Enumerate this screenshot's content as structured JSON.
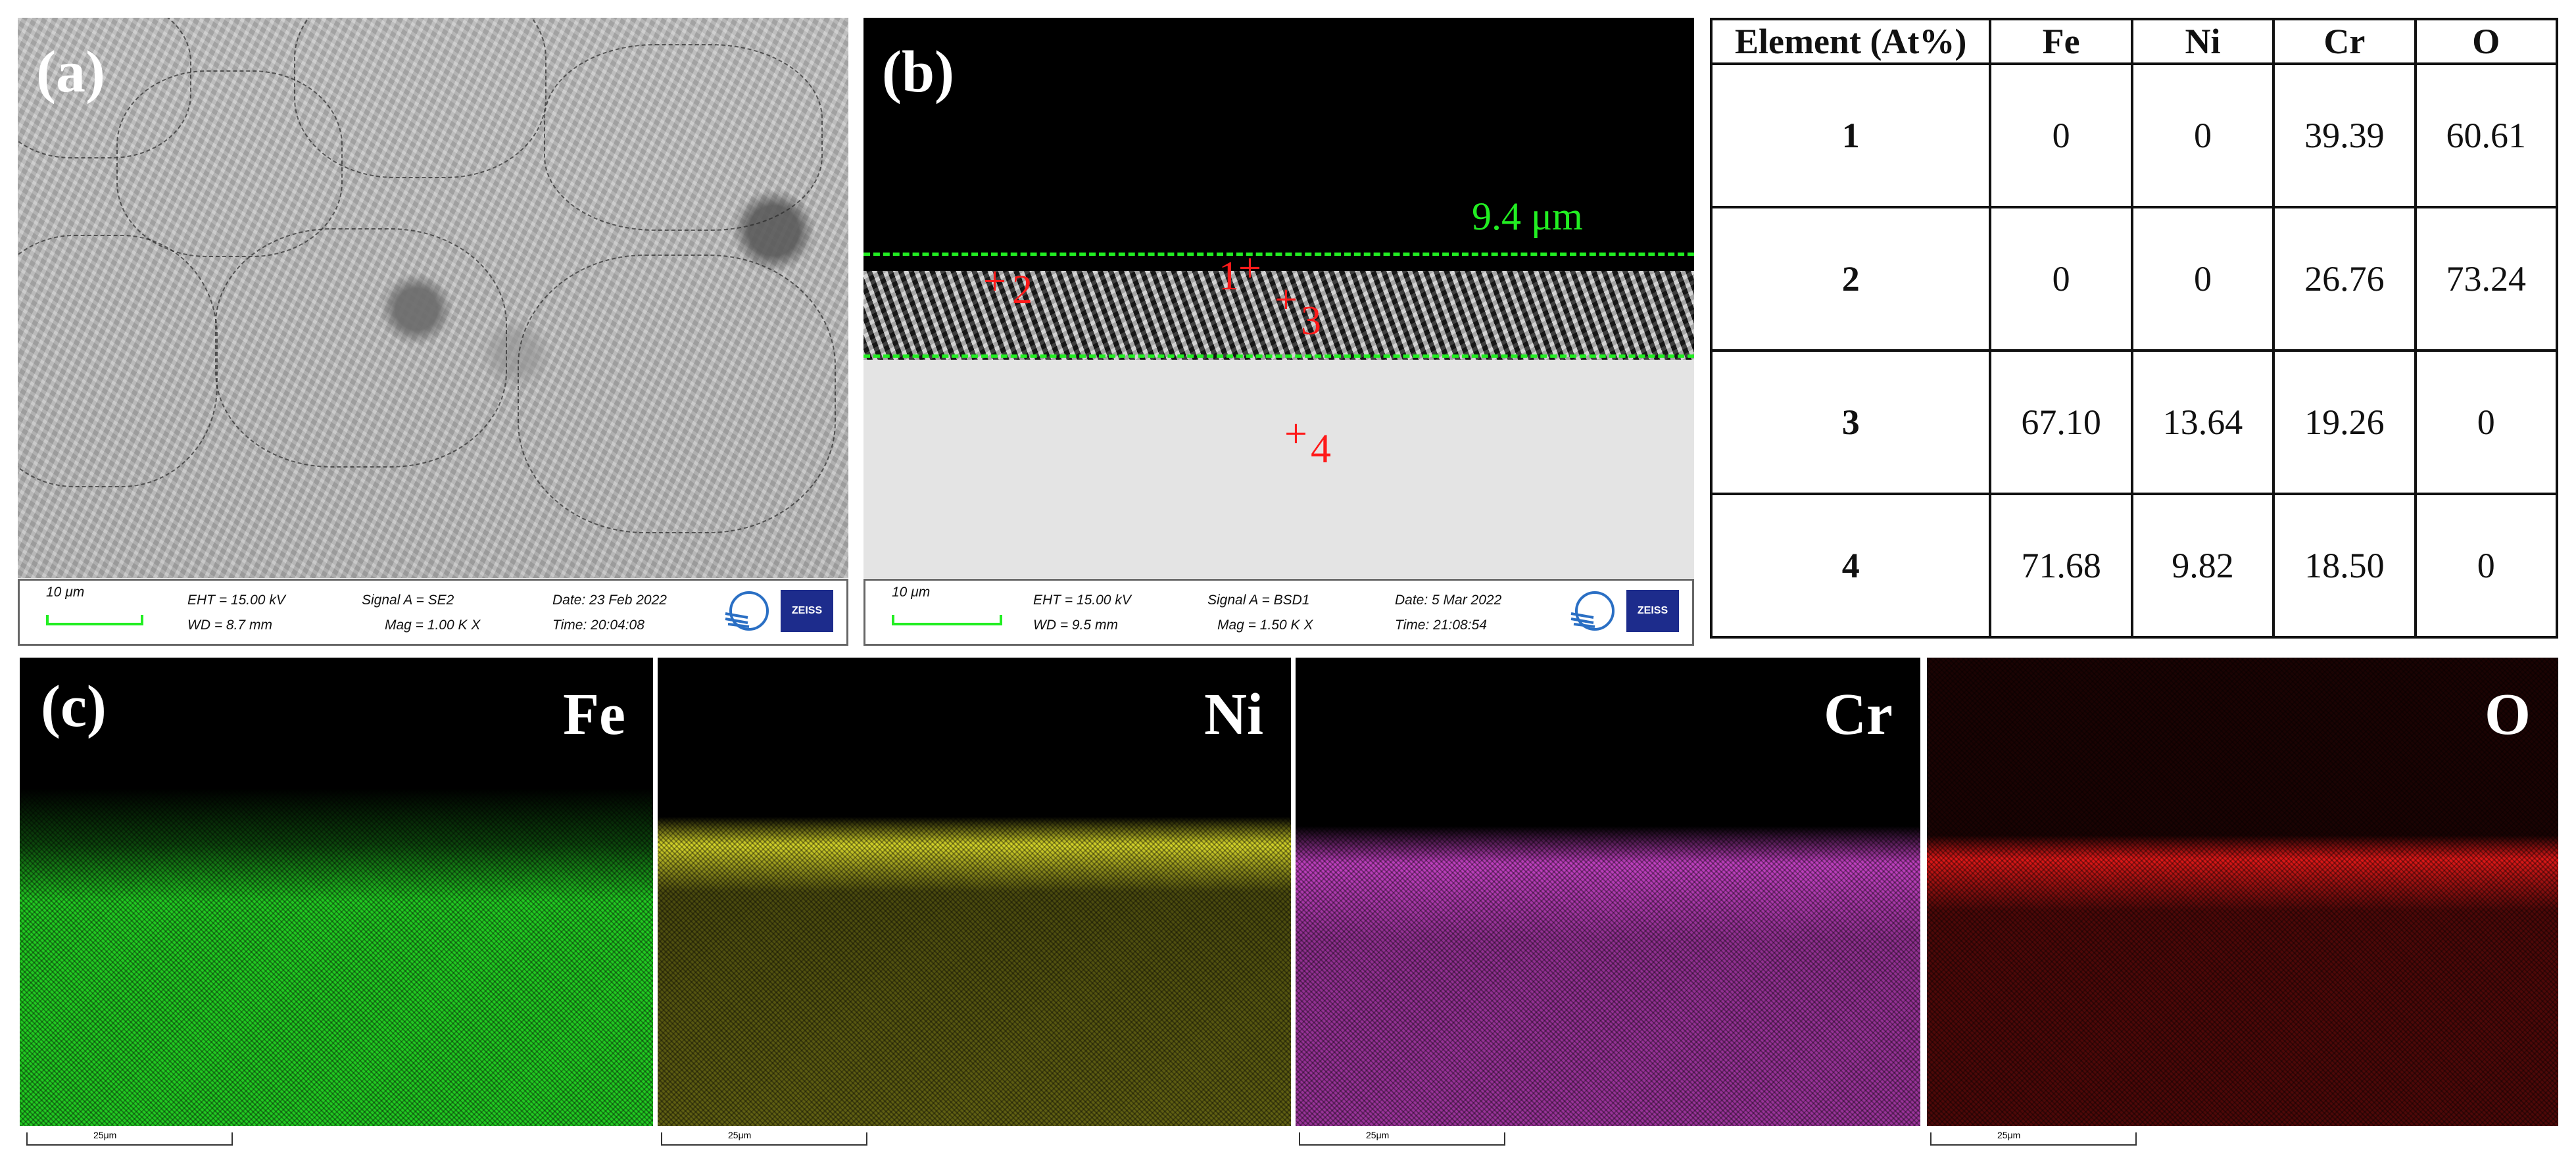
{
  "panels": {
    "a": {
      "label": "(a)",
      "info": {
        "scale": "10 μm",
        "eht": "EHT = 15.00 kV",
        "wd": "WD = 8.7 mm",
        "signal": "Signal A = SE2",
        "mag": "Mag = 1.00 K X",
        "date": "Date: 23 Feb 2022",
        "time": "Time: 20:04:08",
        "brand": "ZEISS"
      }
    },
    "b": {
      "label": "(b)",
      "thickness": "9.4 μm",
      "points": [
        "1",
        "2",
        "3",
        "4"
      ],
      "info": {
        "scale": "10 μm",
        "eht": "EHT = 15.00 kV",
        "wd": "WD = 9.5 mm",
        "signal": "Signal A = BSD1",
        "mag": "Mag = 1.50 K X",
        "date": "Date: 5 Mar 2022",
        "time": "Time: 21:08:54",
        "brand": "ZEISS"
      }
    },
    "c": {
      "label": "(c)",
      "maps": [
        {
          "element": "Fe",
          "color": "#22c922",
          "scale": "25μm"
        },
        {
          "element": "Ni",
          "color": "#d6d62a",
          "scale": "25μm"
        },
        {
          "element": "Cr",
          "color": "#c040c0",
          "scale": "25μm"
        },
        {
          "element": "O",
          "color": "#e01818",
          "scale": "25μm"
        }
      ]
    }
  },
  "table": {
    "header": [
      "Element (At%)",
      "Fe",
      "Ni",
      "Cr",
      "O"
    ],
    "rows": [
      [
        "1",
        "0",
        "0",
        "39.39",
        "60.61"
      ],
      [
        "2",
        "0",
        "0",
        "26.76",
        "73.24"
      ],
      [
        "3",
        "67.10",
        "13.64",
        "19.26",
        "0"
      ],
      [
        "4",
        "71.68",
        "9.82",
        "18.50",
        "0"
      ]
    ]
  }
}
